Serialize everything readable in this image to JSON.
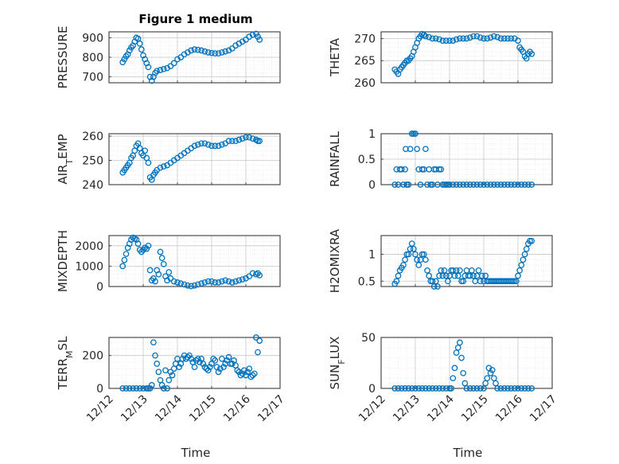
{
  "colors": {
    "marker": "#0072BD",
    "grid": "#c8c8c8",
    "axis": "#262626"
  },
  "chart_data": [
    {
      "type": "scatter",
      "title": "Figure 1 medium",
      "ylabel": "PRESSURE",
      "ylim": [
        670,
        930
      ],
      "yticks": [
        700,
        800,
        900
      ],
      "ytick_labels": [
        "700",
        "800",
        "900"
      ],
      "x": [
        12.4,
        12.45,
        12.5,
        12.55,
        12.6,
        12.65,
        12.7,
        12.75,
        12.8,
        12.85,
        12.9,
        12.95,
        13.0,
        13.05,
        13.1,
        13.15,
        13.2,
        13.25,
        13.3,
        13.35,
        13.4,
        13.5,
        13.6,
        13.7,
        13.8,
        13.9,
        14.0,
        14.1,
        14.2,
        14.3,
        14.4,
        14.5,
        14.6,
        14.7,
        14.8,
        14.9,
        15.0,
        15.1,
        15.2,
        15.3,
        15.4,
        15.5,
        15.6,
        15.7,
        15.8,
        15.9,
        16.0,
        16.1,
        16.2,
        16.3,
        16.35,
        16.4
      ],
      "y": [
        775,
        790,
        805,
        815,
        835,
        850,
        860,
        880,
        900,
        895,
        870,
        840,
        810,
        790,
        770,
        750,
        700,
        680,
        700,
        720,
        730,
        735,
        740,
        745,
        755,
        770,
        790,
        800,
        815,
        825,
        835,
        840,
        838,
        835,
        830,
        825,
        822,
        820,
        820,
        825,
        830,
        835,
        845,
        860,
        870,
        880,
        890,
        905,
        915,
        920,
        905,
        890
      ]
    },
    {
      "type": "scatter",
      "ylabel": "THETA",
      "ylim": [
        260,
        271.5
      ],
      "yticks": [
        260,
        265,
        270
      ],
      "ytick_labels": [
        "260",
        "265",
        "270"
      ],
      "x": [
        12.4,
        12.45,
        12.5,
        12.55,
        12.6,
        12.65,
        12.7,
        12.75,
        12.8,
        12.85,
        12.9,
        12.95,
        13.0,
        13.05,
        13.1,
        13.15,
        13.2,
        13.25,
        13.3,
        13.4,
        13.5,
        13.6,
        13.7,
        13.8,
        13.9,
        14.0,
        14.1,
        14.2,
        14.3,
        14.4,
        14.5,
        14.6,
        14.7,
        14.8,
        14.9,
        15.0,
        15.1,
        15.2,
        15.3,
        15.4,
        15.5,
        15.6,
        15.7,
        15.8,
        15.9,
        16.0,
        16.05,
        16.1,
        16.15,
        16.2,
        16.25,
        16.3,
        16.35,
        16.4
      ],
      "y": [
        263,
        262.5,
        262,
        263,
        263.5,
        264,
        264.5,
        265,
        265,
        265.5,
        266,
        267,
        268,
        269,
        270,
        270.5,
        271,
        270.8,
        270.5,
        270.3,
        270,
        270,
        269.8,
        269.5,
        269.5,
        269.5,
        269.5,
        269.8,
        270,
        270,
        270,
        270.2,
        270.5,
        270.5,
        270.2,
        270,
        270,
        270.2,
        270.5,
        270.3,
        270,
        270,
        270,
        270,
        270,
        269.5,
        268,
        267.5,
        267,
        266,
        265.5,
        266.5,
        267,
        266.5
      ]
    },
    {
      "type": "scatter",
      "ylabel": "AIR_TEMP",
      "ylim": [
        240,
        261
      ],
      "yticks": [
        240,
        250,
        260
      ],
      "ytick_labels": [
        "240",
        "250",
        "260"
      ],
      "x": [
        12.4,
        12.45,
        12.5,
        12.55,
        12.6,
        12.65,
        12.7,
        12.75,
        12.8,
        12.85,
        12.9,
        12.95,
        13.0,
        13.05,
        13.1,
        13.15,
        13.2,
        13.25,
        13.3,
        13.35,
        13.4,
        13.5,
        13.6,
        13.7,
        13.8,
        13.9,
        14.0,
        14.1,
        14.2,
        14.3,
        14.4,
        14.5,
        14.6,
        14.7,
        14.8,
        14.9,
        15.0,
        15.1,
        15.2,
        15.3,
        15.4,
        15.5,
        15.6,
        15.7,
        15.8,
        15.9,
        16.0,
        16.1,
        16.2,
        16.3,
        16.35,
        16.4
      ],
      "y": [
        245,
        246,
        247,
        248,
        249,
        251,
        252,
        254,
        256,
        257,
        255,
        253,
        252,
        254,
        251,
        249,
        243,
        242,
        244,
        245,
        246,
        247,
        247.5,
        248,
        249,
        250,
        251,
        252,
        253,
        254,
        255,
        256,
        256.5,
        257,
        257,
        256.5,
        256,
        256,
        256,
        256.5,
        257,
        258,
        258,
        258,
        258.5,
        259,
        259.5,
        259.5,
        259,
        258.5,
        258,
        258
      ]
    },
    {
      "type": "scatter",
      "ylabel": "RAINFALL",
      "ylim": [
        0,
        1
      ],
      "yticks": [
        0,
        0.5,
        1
      ],
      "ytick_labels": [
        "0",
        "0.5",
        "1"
      ],
      "x": [
        12.4,
        12.45,
        12.5,
        12.55,
        12.6,
        12.65,
        12.7,
        12.72,
        12.75,
        12.8,
        12.85,
        12.9,
        12.95,
        13.0,
        13.05,
        13.1,
        13.15,
        13.2,
        13.25,
        13.3,
        13.35,
        13.4,
        13.45,
        13.5,
        13.55,
        13.6,
        13.65,
        13.7,
        13.75,
        13.8,
        13.85,
        13.9,
        13.95,
        14.0,
        14.1,
        14.2,
        14.3,
        14.4,
        14.5,
        14.6,
        14.7,
        14.8,
        14.9,
        15.0,
        15.1,
        15.2,
        15.3,
        15.4,
        15.5,
        15.6,
        15.7,
        15.8,
        15.9,
        16.0,
        16.1,
        16.2,
        16.3,
        16.4
      ],
      "y": [
        0,
        0.3,
        0,
        0.3,
        0.3,
        0,
        0.3,
        0.7,
        0,
        0,
        0.7,
        1,
        1,
        1,
        0.7,
        0.3,
        0,
        0.3,
        0.3,
        0.7,
        0,
        0.3,
        0,
        0,
        0.3,
        0.3,
        0,
        0.3,
        0.3,
        0,
        0,
        0,
        0,
        0,
        0,
        0,
        0,
        0,
        0,
        0,
        0,
        0,
        0,
        0,
        0,
        0,
        0,
        0,
        0,
        0,
        0,
        0,
        0,
        0,
        0,
        0,
        0,
        0
      ]
    },
    {
      "type": "scatter",
      "ylabel": "MIXDEPTH",
      "ylim": [
        0,
        2500
      ],
      "yticks": [
        0,
        1000,
        2000
      ],
      "ytick_labels": [
        "0",
        "1000",
        "2000"
      ],
      "x": [
        12.4,
        12.45,
        12.5,
        12.55,
        12.6,
        12.65,
        12.7,
        12.75,
        12.8,
        12.85,
        12.9,
        12.95,
        13.0,
        13.05,
        13.1,
        13.15,
        13.2,
        13.25,
        13.3,
        13.35,
        13.4,
        13.45,
        13.5,
        13.55,
        13.6,
        13.65,
        13.7,
        13.75,
        13.8,
        13.9,
        14.0,
        14.1,
        14.2,
        14.3,
        14.4,
        14.5,
        14.6,
        14.7,
        14.8,
        14.9,
        15.0,
        15.1,
        15.2,
        15.3,
        15.4,
        15.5,
        15.6,
        15.7,
        15.8,
        15.9,
        16.0,
        16.1,
        16.2,
        16.3,
        16.35,
        16.4
      ],
      "y": [
        1000,
        1300,
        1600,
        1900,
        2100,
        2300,
        2400,
        2350,
        2300,
        2100,
        1800,
        1700,
        1800,
        1900,
        1850,
        2000,
        800,
        300,
        400,
        250,
        800,
        600,
        1700,
        1400,
        1100,
        500,
        300,
        700,
        400,
        250,
        200,
        150,
        100,
        50,
        20,
        50,
        100,
        150,
        200,
        250,
        250,
        200,
        200,
        250,
        300,
        250,
        200,
        250,
        300,
        350,
        400,
        500,
        650,
        600,
        650,
        550
      ]
    },
    {
      "type": "scatter",
      "ylabel": "H2OMIXRA",
      "ylim": [
        0.4,
        1.35
      ],
      "yticks": [
        0.5,
        1
      ],
      "ytick_labels": [
        "0.5",
        "1"
      ],
      "x": [
        12.4,
        12.45,
        12.5,
        12.55,
        12.6,
        12.65,
        12.7,
        12.75,
        12.8,
        12.85,
        12.9,
        12.95,
        13.0,
        13.05,
        13.1,
        13.15,
        13.2,
        13.25,
        13.3,
        13.35,
        13.4,
        13.45,
        13.5,
        13.55,
        13.6,
        13.65,
        13.7,
        13.75,
        13.8,
        13.85,
        13.9,
        13.95,
        14.0,
        14.05,
        14.1,
        14.15,
        14.2,
        14.25,
        14.3,
        14.35,
        14.4,
        14.45,
        14.5,
        14.55,
        14.6,
        14.65,
        14.7,
        14.75,
        14.8,
        14.85,
        14.9,
        14.95,
        15.0,
        15.05,
        15.1,
        15.15,
        15.2,
        15.25,
        15.3,
        15.35,
        15.4,
        15.45,
        15.5,
        15.55,
        15.6,
        15.65,
        15.7,
        15.75,
        15.8,
        15.85,
        15.9,
        15.95,
        16.0,
        16.05,
        16.1,
        16.15,
        16.2,
        16.25,
        16.3,
        16.35,
        16.4
      ],
      "y": [
        0.45,
        0.5,
        0.6,
        0.7,
        0.75,
        0.8,
        0.9,
        1.0,
        1.0,
        1.1,
        1.2,
        1.1,
        1.0,
        0.9,
        0.8,
        0.9,
        1.0,
        1.0,
        0.9,
        0.7,
        0.6,
        0.5,
        0.5,
        0.4,
        0.5,
        0.4,
        0.6,
        0.7,
        0.6,
        0.7,
        0.6,
        0.5,
        0.6,
        0.7,
        0.7,
        0.6,
        0.7,
        0.6,
        0.7,
        0.5,
        0.5,
        0.6,
        0.7,
        0.6,
        0.6,
        0.7,
        0.6,
        0.5,
        0.6,
        0.7,
        0.5,
        0.6,
        0.5,
        0.6,
        0.5,
        0.5,
        0.5,
        0.5,
        0.5,
        0.5,
        0.5,
        0.5,
        0.5,
        0.5,
        0.5,
        0.5,
        0.5,
        0.5,
        0.5,
        0.5,
        0.5,
        0.5,
        0.6,
        0.7,
        0.8,
        0.9,
        1.0,
        1.1,
        1.2,
        1.25,
        1.25
      ]
    },
    {
      "type": "scatter",
      "ylabel": "TERR_MSL",
      "ylim": [
        0,
        310
      ],
      "yticks": [
        0,
        200
      ],
      "ytick_labels": [
        "0",
        "200"
      ],
      "x": [
        12.4,
        12.5,
        12.6,
        12.7,
        12.8,
        12.9,
        13.0,
        13.1,
        13.15,
        13.2,
        13.25,
        13.3,
        13.35,
        13.4,
        13.45,
        13.5,
        13.55,
        13.6,
        13.65,
        13.7,
        13.75,
        13.8,
        13.85,
        13.9,
        13.95,
        14.0,
        14.05,
        14.1,
        14.15,
        14.2,
        14.25,
        14.3,
        14.35,
        14.4,
        14.45,
        14.5,
        14.55,
        14.6,
        14.65,
        14.7,
        14.75,
        14.8,
        14.85,
        14.9,
        14.95,
        15.0,
        15.05,
        15.1,
        15.15,
        15.2,
        15.25,
        15.3,
        15.35,
        15.4,
        15.45,
        15.5,
        15.55,
        15.6,
        15.65,
        15.7,
        15.75,
        15.8,
        15.85,
        15.9,
        15.95,
        16.0,
        16.05,
        16.1,
        16.15,
        16.2,
        16.25,
        16.3,
        16.35,
        16.4
      ],
      "y": [
        0,
        0,
        0,
        0,
        0,
        0,
        0,
        0,
        0,
        0,
        20,
        280,
        200,
        150,
        100,
        50,
        20,
        0,
        110,
        0,
        50,
        100,
        80,
        120,
        150,
        180,
        130,
        150,
        180,
        200,
        180,
        190,
        200,
        180,
        160,
        130,
        170,
        180,
        160,
        180,
        150,
        130,
        120,
        110,
        130,
        150,
        180,
        170,
        130,
        100,
        120,
        180,
        130,
        150,
        170,
        190,
        150,
        150,
        170,
        140,
        110,
        100,
        80,
        90,
        110,
        80,
        100,
        120,
        70,
        80,
        90,
        310,
        220,
        290
      ]
    },
    {
      "type": "scatter",
      "ylabel": "SUN_FLUX",
      "ylim": [
        0,
        50
      ],
      "yticks": [
        0,
        50
      ],
      "ytick_labels": [
        "0",
        "50"
      ],
      "x": [
        12.4,
        12.5,
        12.6,
        12.7,
        12.8,
        12.9,
        13.0,
        13.1,
        13.2,
        13.3,
        13.4,
        13.5,
        13.6,
        13.7,
        13.8,
        13.9,
        14.0,
        14.05,
        14.1,
        14.15,
        14.2,
        14.25,
        14.3,
        14.35,
        14.4,
        14.45,
        14.5,
        14.6,
        14.7,
        14.8,
        14.9,
        15.0,
        15.05,
        15.1,
        15.15,
        15.2,
        15.25,
        15.3,
        15.35,
        15.4,
        15.5,
        15.6,
        15.7,
        15.8,
        15.9,
        16.0,
        16.1,
        16.2,
        16.3,
        16.4
      ],
      "y": [
        0,
        0,
        0,
        0,
        0,
        0,
        0,
        0,
        0,
        0,
        0,
        0,
        0,
        0,
        0,
        0,
        0,
        0,
        10,
        20,
        35,
        40,
        45,
        30,
        15,
        5,
        0,
        0,
        0,
        0,
        0,
        0,
        5,
        10,
        20,
        15,
        18,
        10,
        5,
        0,
        0,
        0,
        0,
        0,
        0,
        0,
        0,
        0,
        0,
        0
      ]
    }
  ],
  "x_axis": {
    "xlim": [
      12,
      17
    ],
    "ticks": [
      12,
      13,
      14,
      15,
      16,
      17
    ],
    "tick_labels": [
      "12/12",
      "12/13",
      "12/14",
      "12/15",
      "12/16",
      "12/17"
    ],
    "xlabel": "Time"
  }
}
